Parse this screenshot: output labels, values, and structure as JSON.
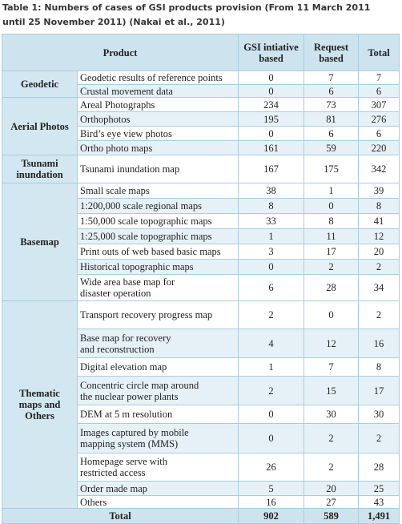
{
  "caption": "Table 1: Numbers of cases of GSI products provision (From 11 March 2011 until 25 November 2011) (Nakai et al., 2011)",
  "table": {
    "header": [
      "Product",
      "GSI intiative\nbased",
      "Request\nbased",
      "Total"
    ],
    "groups": [
      {
        "label": "Geodetic",
        "rows": [
          [
            "Geodetic results of reference points",
            0,
            7,
            7
          ],
          [
            "Crustal movement data",
            0,
            6,
            6
          ]
        ]
      },
      {
        "label": "Aerial Photos",
        "rows": [
          [
            "Areal Photographs",
            234,
            73,
            307
          ],
          [
            "Orthophotos",
            195,
            81,
            276
          ],
          [
            "Bird’s eye view photos",
            0,
            6,
            6
          ],
          [
            "Ortho photo maps",
            161,
            59,
            220
          ]
        ]
      },
      {
        "label": "Tsunami\ninundation",
        "rows": [
          [
            "Tsunami inundation map",
            167,
            175,
            342
          ]
        ]
      },
      {
        "label": "Basemap",
        "rows": [
          [
            "Small scale maps",
            38,
            1,
            39
          ],
          [
            "1:200,000 scale regional maps",
            8,
            0,
            8
          ],
          [
            "1:50,000 scale topographic maps",
            33,
            8,
            41
          ],
          [
            "1:25,000 scale topographic maps",
            1,
            11,
            12
          ],
          [
            "Print outs of web based basic maps",
            3,
            17,
            20
          ],
          [
            "Historical topographic maps",
            0,
            2,
            2
          ],
          [
            "Wide area base map for\ndisaster operation",
            6,
            28,
            34
          ]
        ]
      },
      {
        "label": "Thematic\nmaps and\nOthers",
        "rows": [
          [
            "Transport recovery progress map",
            2,
            0,
            2
          ],
          [
            "Base map for recovery\nand reconstruction",
            4,
            12,
            16
          ],
          [
            "Digital elevation map",
            1,
            7,
            8
          ],
          [
            "Concentric circle map around\nthe nuclear power plants",
            2,
            15,
            17
          ],
          [
            "DEM at 5 m resolution",
            0,
            30,
            30
          ],
          [
            "Images captured by mobile\nmapping system (MMS)",
            0,
            2,
            2
          ],
          [
            "Homepage serve with\nrestricted access",
            26,
            2,
            28
          ],
          [
            "Order made map",
            5,
            20,
            25
          ],
          [
            "Others",
            16,
            27,
            43
          ]
        ]
      }
    ],
    "total": [
      "Total",
      902,
      589,
      "1,491"
    ]
  }
}
